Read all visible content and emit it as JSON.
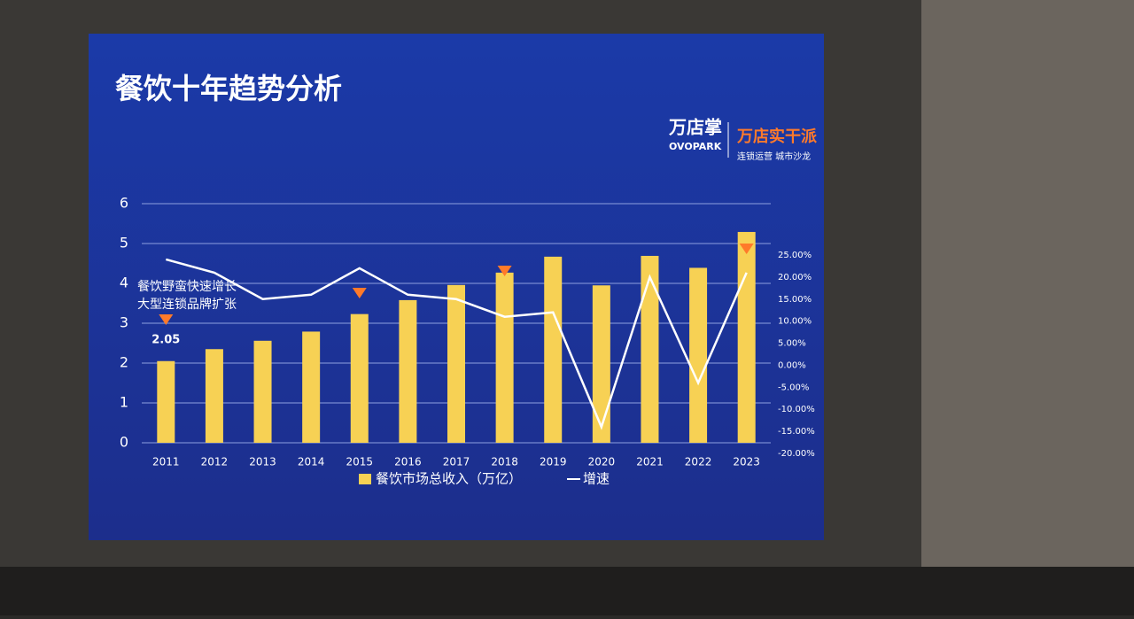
{
  "chart_data": {
    "type": "bar-line",
    "title": "餐饮十年趋势分析",
    "categories": [
      "2011",
      "2012",
      "2013",
      "2014",
      "2015",
      "2016",
      "2017",
      "2018",
      "2019",
      "2020",
      "2021",
      "2022",
      "2023"
    ],
    "series": [
      {
        "name": "餐饮市场总收入（万亿）",
        "color": "#f7d154",
        "values": [
          2.05,
          2.35,
          2.56,
          2.79,
          3.23,
          3.58,
          3.96,
          4.27,
          4.67,
          3.95,
          4.69,
          4.39,
          5.29
        ]
      },
      {
        "name": "增速",
        "color": "#ffffff",
        "axis": "y2",
        "values": [
          24,
          21,
          15,
          16,
          22,
          16,
          15,
          11,
          12,
          -14,
          20,
          -4,
          21
        ]
      }
    ],
    "ylim": [
      0,
      6
    ],
    "yticks": [
      0,
      1,
      2,
      3,
      4,
      5,
      6
    ],
    "y2lim": [
      -20,
      25
    ],
    "y2ticks": [
      {
        "value": -20,
        "label": "-20.00%"
      },
      {
        "value": -15,
        "label": "-15.00%"
      },
      {
        "value": -10,
        "label": "-10.00%"
      },
      {
        "value": -5,
        "label": "-5.00%"
      },
      {
        "value": 0,
        "label": "0.00%"
      },
      {
        "value": 5,
        "label": "5.00%"
      },
      {
        "value": 10,
        "label": "10.00%"
      },
      {
        "value": 15,
        "label": "15.00%"
      },
      {
        "value": 20,
        "label": "20.00%"
      },
      {
        "value": 25,
        "label": "25.00%"
      }
    ],
    "grid": true,
    "annotations": [
      "餐饮野蛮快速增长",
      "大型连锁品牌扩张"
    ]
  },
  "branding": {
    "logo": "万店掌",
    "logo_en": "OVOPARK",
    "slogan": "万店实干派",
    "event": "连锁运营  城市沙龙"
  }
}
